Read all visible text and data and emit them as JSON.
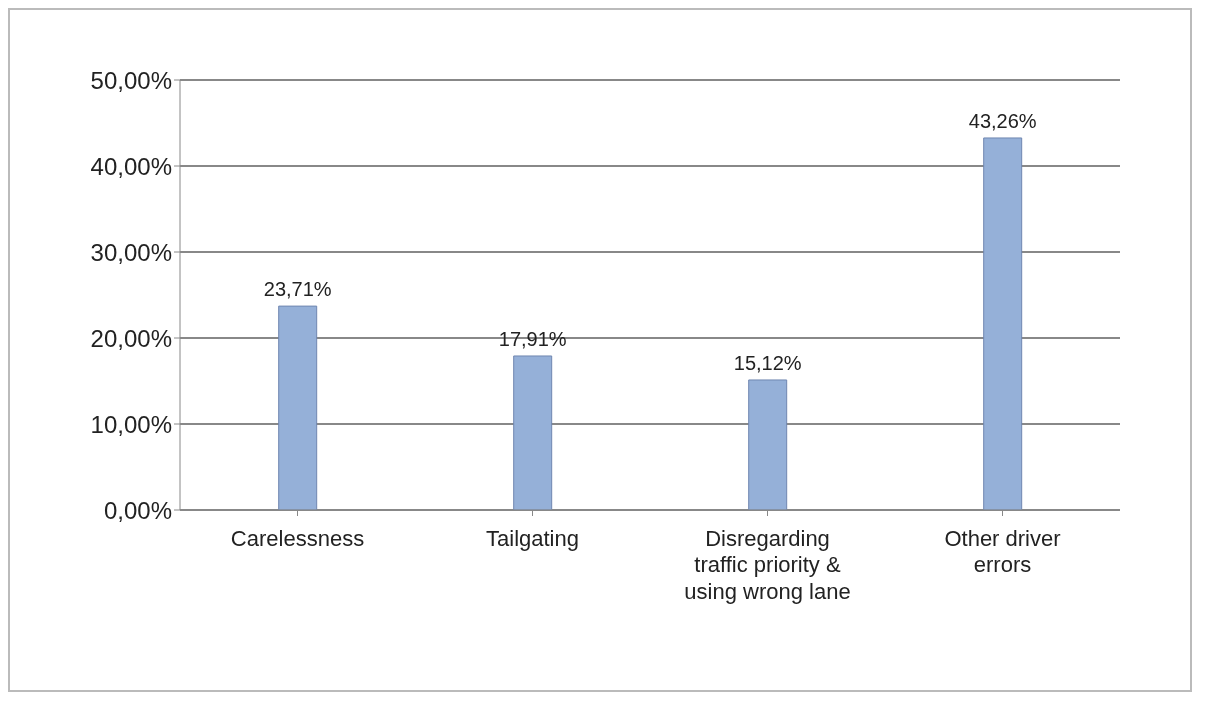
{
  "chart_data": {
    "type": "bar",
    "categories": [
      "Carelessness",
      "Tailgating",
      "Disregarding traffic priority & using wrong lane",
      "Other driver errors"
    ],
    "values": [
      23.71,
      17.91,
      15.12,
      43.26
    ],
    "value_labels": [
      "23,71%",
      "17,91%",
      "15,12%",
      "43,26%"
    ],
    "color": "#95b0d8",
    "ylim": [
      0,
      50
    ],
    "yticks": [
      {
        "value": 0,
        "label": "0,00%"
      },
      {
        "value": 10,
        "label": "10,00%"
      },
      {
        "value": 20,
        "label": "20,00%"
      },
      {
        "value": 30,
        "label": "30,00%"
      },
      {
        "value": 40,
        "label": "40,00%"
      },
      {
        "value": 50,
        "label": "50,00%"
      }
    ],
    "grid": "y"
  }
}
